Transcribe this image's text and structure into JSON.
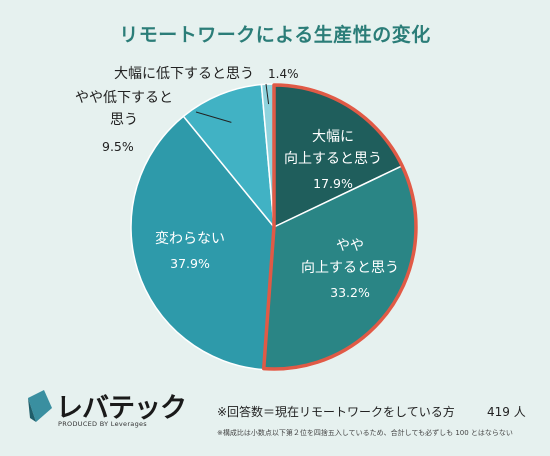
{
  "chart_data": {
    "type": "pie",
    "title": "リモートワークによる生産性の変化",
    "slices": [
      {
        "label": "大幅に向上すると思う",
        "label_lines": [
          "大幅に",
          "向上すると思う"
        ],
        "value": 17.9,
        "value_label": "17.9%",
        "color": "#1f5e5c"
      },
      {
        "label": "やや向上すると思う",
        "label_lines": [
          "やや",
          "向上すると思う"
        ],
        "value": 33.2,
        "value_label": "33.2%",
        "color": "#2a8585"
      },
      {
        "label": "変わらない",
        "label_lines": [
          "変わらない"
        ],
        "value": 37.9,
        "value_label": "37.9%",
        "color": "#2e9aaa"
      },
      {
        "label": "やや低下すると思う",
        "label_lines": [
          "やや低下すると",
          "思う"
        ],
        "value": 9.5,
        "value_label": "9.5%",
        "color": "#41b2c4"
      },
      {
        "label": "大幅に低下すると思う",
        "label_lines": [
          "大幅に低下すると思う"
        ],
        "value": 1.4,
        "value_label": "1.4%",
        "color": "#8fd3dd"
      }
    ],
    "highlight": "向上すると思う",
    "highlight_color": "#e05a46"
  },
  "footer": {
    "note_main": "※回答数＝現在リモートワークをしている方",
    "note_count": "419 人",
    "note_small": "※構成比は小数点以下第２位を四捨五入しているため、合計しても必ずしも 100 とはならない"
  },
  "logo": {
    "text": "レバテック",
    "sub": "PRODUCED BY Leverages"
  }
}
